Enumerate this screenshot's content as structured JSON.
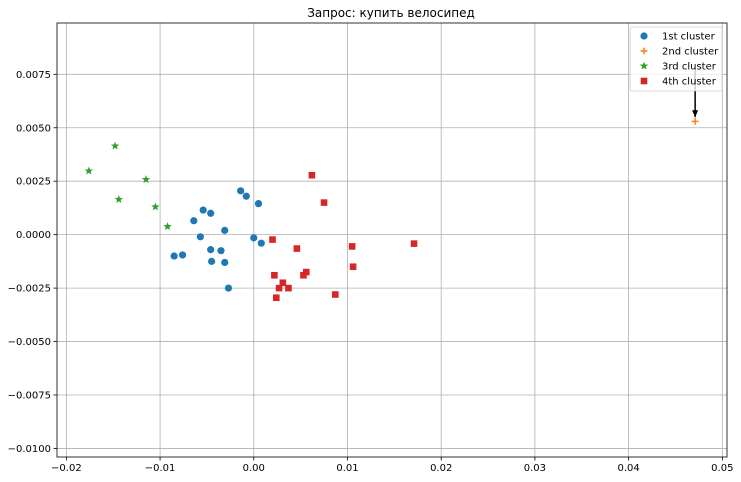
{
  "chart_data": {
    "type": "scatter",
    "title": "Запрос: купить велосипед",
    "xlabel": "",
    "ylabel": "",
    "xlim": [
      -0.021,
      0.0505
    ],
    "ylim": [
      -0.0104,
      0.0099
    ],
    "xticks": [
      -0.02,
      -0.01,
      0.0,
      0.01,
      0.02,
      0.03,
      0.04,
      0.05
    ],
    "xtick_labels": [
      "−0.02",
      "−0.01",
      "0.00",
      "0.01",
      "0.02",
      "0.03",
      "0.04",
      "0.05"
    ],
    "yticks": [
      -0.01,
      -0.0075,
      -0.005,
      -0.0025,
      0.0,
      0.0025,
      0.005,
      0.0075
    ],
    "ytick_labels": [
      "−0.0100",
      "−0.0075",
      "−0.0050",
      "−0.0025",
      "0.0000",
      "0.0025",
      "0.0050",
      "0.0075"
    ],
    "grid": true,
    "legend_position": "top-right",
    "series": [
      {
        "name": "1st cluster",
        "marker": "circle",
        "color": "#1f77b4",
        "points": [
          [
            -0.0014,
            0.00205
          ],
          [
            -0.0008,
            0.0018
          ],
          [
            0.0005,
            0.00145
          ],
          [
            -0.0054,
            0.00115
          ],
          [
            -0.0046,
            0.001
          ],
          [
            -0.0064,
            0.00065
          ],
          [
            -0.0031,
            0.0002
          ],
          [
            -0.0057,
            -0.0001
          ],
          [
            0.0,
            -0.00015
          ],
          [
            0.0008,
            -0.0004
          ],
          [
            -0.0046,
            -0.0007
          ],
          [
            -0.0035,
            -0.00075
          ],
          [
            -0.0085,
            -0.001
          ],
          [
            -0.0076,
            -0.00095
          ],
          [
            -0.0045,
            -0.00125
          ],
          [
            -0.0031,
            -0.0013
          ],
          [
            -0.0027,
            -0.0025
          ]
        ]
      },
      {
        "name": "2nd cluster",
        "marker": "plus",
        "color": "#ff7f0e",
        "points": [
          [
            0.0471,
            0.0053
          ]
        ]
      },
      {
        "name": "3rd cluster",
        "marker": "star",
        "color": "#2ca02c",
        "points": [
          [
            -0.0176,
            0.00298
          ],
          [
            -0.0148,
            0.00415
          ],
          [
            -0.0115,
            0.00258
          ],
          [
            -0.0144,
            0.00165
          ],
          [
            -0.0105,
            0.0013
          ],
          [
            -0.0092,
            0.00038
          ]
        ]
      },
      {
        "name": "4th cluster",
        "marker": "square",
        "color": "#d62728",
        "points": [
          [
            0.0062,
            0.00278
          ],
          [
            0.0075,
            0.0015
          ],
          [
            0.002,
            -0.00023
          ],
          [
            0.0046,
            -0.00065
          ],
          [
            0.0105,
            -0.00055
          ],
          [
            0.0171,
            -0.00042
          ],
          [
            0.0106,
            -0.0015
          ],
          [
            0.0022,
            -0.0019
          ],
          [
            0.0056,
            -0.00175
          ],
          [
            0.0053,
            -0.0019
          ],
          [
            0.0031,
            -0.00225
          ],
          [
            0.0027,
            -0.0025
          ],
          [
            0.0037,
            -0.0025
          ],
          [
            0.0087,
            -0.0028
          ],
          [
            0.0024,
            -0.00295
          ]
        ]
      }
    ],
    "annotations": [
      {
        "text": "",
        "point": [
          0.0471,
          0.0054
        ],
        "text_at": [
          0.0471,
          0.0081
        ]
      }
    ]
  }
}
